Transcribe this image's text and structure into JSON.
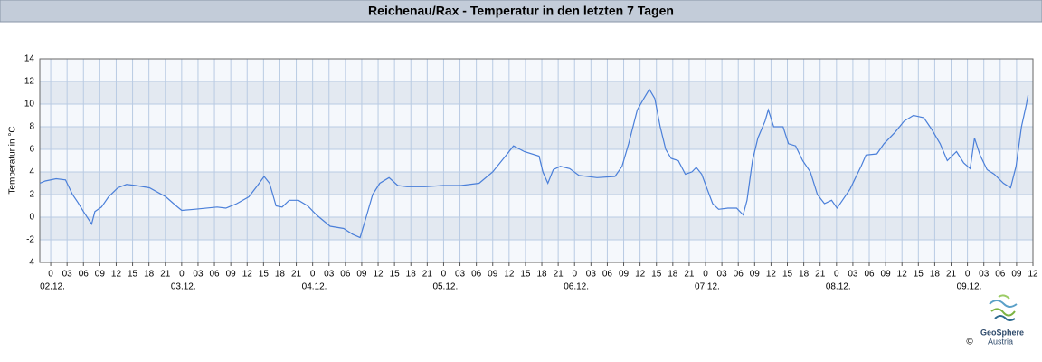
{
  "chart_data": {
    "type": "line",
    "title": "Reichenau/Rax - Temperatur in den letzten 7 Tagen",
    "y_label": "Temperatur in °C",
    "xlim": [
      -2,
      180
    ],
    "ylim": [
      -4,
      14
    ],
    "yticks": [
      -4,
      -2,
      0,
      2,
      4,
      6,
      8,
      10,
      12,
      14
    ],
    "xticks": [
      0,
      {
        "value": 3,
        "label": "03"
      },
      {
        "value": 6,
        "label": "06"
      },
      {
        "value": 9,
        "label": "09"
      },
      {
        "value": 12,
        "label": "12"
      },
      {
        "value": 15,
        "label": "15"
      },
      {
        "value": 18,
        "label": "18"
      },
      {
        "value": 21,
        "label": "21"
      },
      {
        "value": 24,
        "label": "0"
      },
      {
        "value": 27,
        "label": "03"
      },
      {
        "value": 30,
        "label": "06"
      },
      {
        "value": 33,
        "label": "09"
      },
      {
        "value": 36,
        "label": "12"
      },
      {
        "value": 39,
        "label": "15"
      },
      {
        "value": 42,
        "label": "18"
      },
      {
        "value": 45,
        "label": "21"
      },
      {
        "value": 48,
        "label": "0"
      },
      {
        "value": 51,
        "label": "03"
      },
      {
        "value": 54,
        "label": "06"
      },
      {
        "value": 57,
        "label": "09"
      },
      {
        "value": 60,
        "label": "12"
      },
      {
        "value": 63,
        "label": "15"
      },
      {
        "value": 66,
        "label": "18"
      },
      {
        "value": 69,
        "label": "21"
      },
      {
        "value": 72,
        "label": "0"
      },
      {
        "value": 75,
        "label": "03"
      },
      {
        "value": 78,
        "label": "06"
      },
      {
        "value": 81,
        "label": "09"
      },
      {
        "value": 84,
        "label": "12"
      },
      {
        "value": 87,
        "label": "15"
      },
      {
        "value": 90,
        "label": "18"
      },
      {
        "value": 93,
        "label": "21"
      },
      {
        "value": 96,
        "label": "0"
      },
      {
        "value": 99,
        "label": "03"
      },
      {
        "value": 102,
        "label": "06"
      },
      {
        "value": 105,
        "label": "09"
      },
      {
        "value": 108,
        "label": "12"
      },
      {
        "value": 111,
        "label": "15"
      },
      {
        "value": 114,
        "label": "18"
      },
      {
        "value": 117,
        "label": "21"
      },
      {
        "value": 120,
        "label": "0"
      },
      {
        "value": 123,
        "label": "03"
      },
      {
        "value": 126,
        "label": "06"
      },
      {
        "value": 129,
        "label": "09"
      },
      {
        "value": 132,
        "label": "12"
      },
      {
        "value": 135,
        "label": "15"
      },
      {
        "value": 138,
        "label": "18"
      },
      {
        "value": 141,
        "label": "21"
      },
      {
        "value": 144,
        "label": "0"
      },
      {
        "value": 147,
        "label": "03"
      },
      {
        "value": 150,
        "label": "06"
      },
      {
        "value": 153,
        "label": "09"
      },
      {
        "value": 156,
        "label": "12"
      },
      {
        "value": 159,
        "label": "15"
      },
      {
        "value": 162,
        "label": "18"
      },
      {
        "value": 165,
        "label": "21"
      },
      {
        "value": 168,
        "label": "0"
      },
      {
        "value": 171,
        "label": "03"
      },
      {
        "value": 174,
        "label": "06"
      },
      {
        "value": 177,
        "label": "09"
      },
      {
        "value": 180,
        "label": "12"
      }
    ],
    "day_labels": [
      {
        "value": 0,
        "label": "02.12."
      },
      {
        "value": 24,
        "label": "03.12."
      },
      {
        "value": 48,
        "label": "04.12."
      },
      {
        "value": 72,
        "label": "05.12."
      },
      {
        "value": 96,
        "label": "06.12."
      },
      {
        "value": 120,
        "label": "07.12."
      },
      {
        "value": 144,
        "label": "08.12."
      },
      {
        "value": 168,
        "label": "09.12."
      }
    ],
    "grid": true,
    "banded_grid": true,
    "x": [
      -2.0,
      -1.0,
      1.0,
      2.7,
      4.0,
      5.0,
      6.0,
      7.5,
      8.1,
      9.3,
      10.6,
      12.3,
      13.9,
      15.6,
      18.1,
      21.1,
      23.0,
      24.0,
      26.3,
      30.5,
      32.1,
      34.1,
      36.3,
      37.9,
      39.1,
      40.1,
      41.3,
      42.4,
      43.7,
      45.4,
      47.1,
      48.7,
      51.2,
      53.7,
      55.3,
      56.7,
      57.8,
      59.0,
      60.3,
      62.0,
      63.6,
      65.3,
      68.6,
      71.9,
      75.2,
      78.5,
      81.0,
      83.5,
      84.8,
      86.8,
      89.5,
      90.2,
      91.1,
      92.1,
      93.4,
      95.1,
      96.8,
      100.1,
      103.4,
      104.7,
      105.9,
      107.5,
      108.7,
      109.7,
      110.7,
      111.7,
      112.7,
      113.7,
      115.0,
      116.3,
      117.5,
      118.3,
      119.3,
      120.3,
      121.3,
      122.4,
      124.1,
      125.7,
      126.9,
      127.6,
      128.6,
      129.6,
      130.9,
      131.5,
      132.5,
      134.2,
      135.2,
      136.5,
      137.8,
      139.2,
      140.5,
      141.8,
      143.1,
      144.1,
      145.1,
      146.5,
      147.5,
      148.5,
      149.4,
      151.4,
      152.7,
      154.7,
      156.4,
      158.1,
      160.0,
      161.4,
      163.0,
      164.3,
      166.0,
      167.3,
      168.5,
      169.3,
      170.3,
      171.6,
      172.9,
      174.6,
      175.9,
      176.9,
      177.9,
      178.8,
      179.1
    ],
    "series": [
      {
        "name": "Temperatur",
        "color": "#4a7fd9",
        "values": [
          3.0,
          3.2,
          3.4,
          3.3,
          2.0,
          1.3,
          0.5,
          -0.6,
          0.5,
          0.9,
          1.8,
          2.6,
          2.9,
          2.8,
          2.6,
          1.8,
          1.0,
          0.6,
          0.7,
          0.9,
          0.8,
          1.2,
          1.8,
          2.8,
          3.6,
          3.0,
          1.0,
          0.9,
          1.5,
          1.5,
          1.0,
          0.2,
          -0.8,
          -1.0,
          -1.5,
          -1.8,
          0.0,
          2.0,
          3.0,
          3.5,
          2.8,
          2.7,
          2.7,
          2.8,
          2.8,
          3.0,
          4.0,
          5.5,
          6.3,
          5.8,
          5.4,
          4.0,
          3.0,
          4.2,
          4.5,
          4.3,
          3.7,
          3.5,
          3.6,
          4.5,
          6.5,
          9.5,
          10.5,
          11.3,
          10.5,
          8.0,
          6.0,
          5.2,
          5.0,
          3.8,
          4.0,
          4.4,
          3.8,
          2.5,
          1.2,
          0.7,
          0.8,
          0.8,
          0.2,
          1.5,
          5.0,
          7.0,
          8.5,
          9.5,
          8.0,
          8.0,
          6.5,
          6.3,
          5.0,
          4.0,
          2.0,
          1.2,
          1.5,
          0.8,
          1.5,
          2.5,
          3.5,
          4.5,
          5.5,
          5.6,
          6.5,
          7.5,
          8.5,
          9.0,
          8.8,
          7.8,
          6.5,
          5.0,
          5.8,
          4.8,
          4.3,
          7.0,
          5.5,
          4.2,
          3.8,
          3.0,
          2.6,
          4.5,
          8.0,
          10.0,
          10.8
        ]
      }
    ]
  },
  "logo": {
    "name": "GeoSphere",
    "subtitle": "Austria",
    "copyright": "©"
  }
}
